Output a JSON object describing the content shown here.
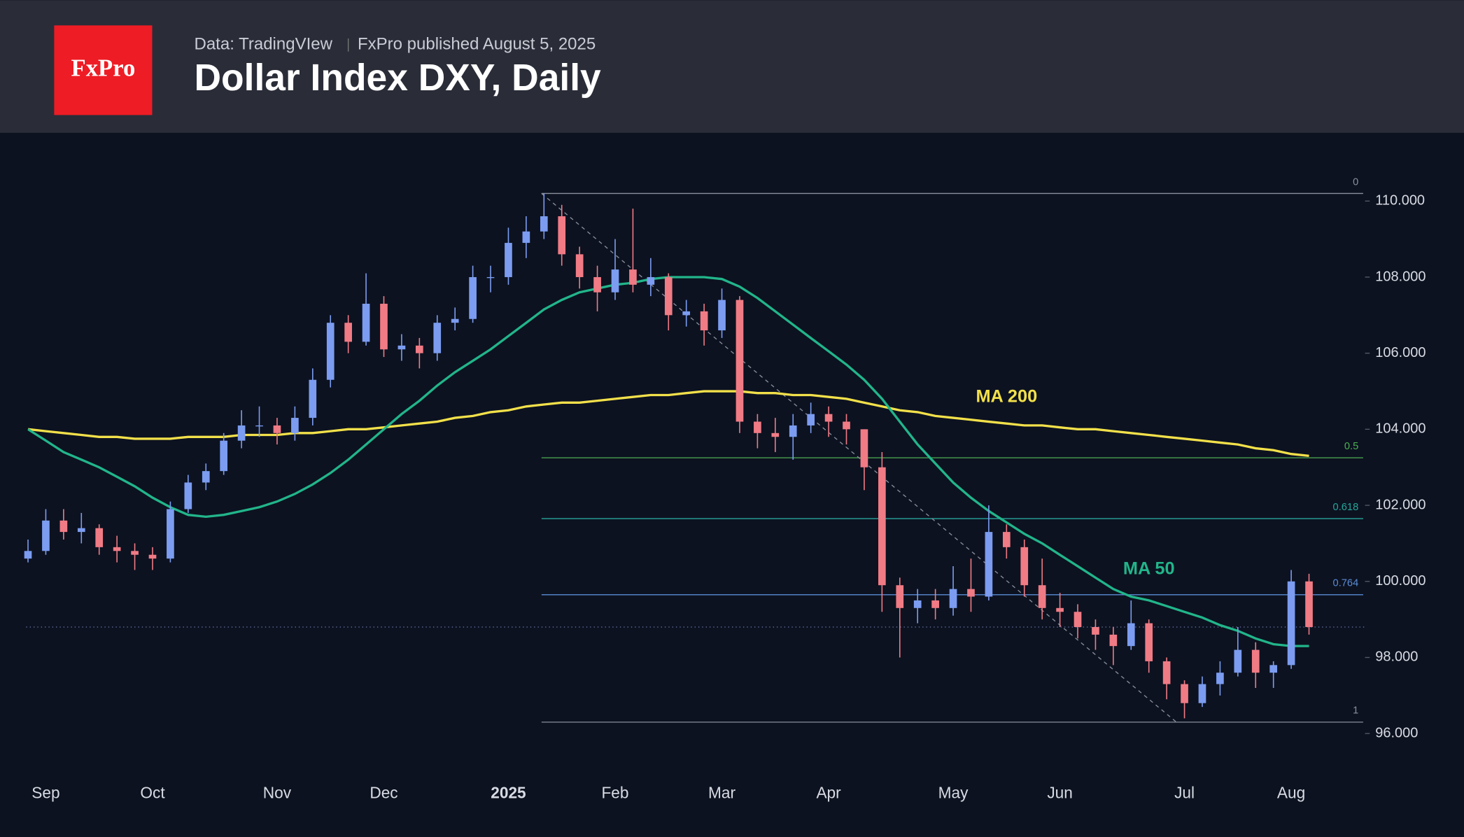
{
  "header": {
    "logo": "FxPro",
    "source": "Data: TradingVIew",
    "published": "FxPro published August 5, 2025",
    "title": "Dollar Index DXY, Daily"
  },
  "chart_data": {
    "type": "candlestick",
    "categories": [
      null,
      "Sep",
      null,
      null,
      null,
      null,
      null,
      "Oct",
      null,
      null,
      null,
      null,
      null,
      null,
      "Nov",
      null,
      null,
      null,
      null,
      null,
      "Dec",
      null,
      null,
      null,
      null,
      null,
      null,
      "2025",
      null,
      null,
      null,
      null,
      null,
      "Feb",
      null,
      null,
      null,
      null,
      null,
      "Mar",
      null,
      null,
      null,
      null,
      null,
      "Apr",
      null,
      null,
      null,
      null,
      null,
      null,
      "May",
      null,
      null,
      null,
      null,
      null,
      "Jun",
      null,
      null,
      null,
      null,
      null,
      null,
      "Jul",
      null,
      null,
      null,
      null,
      null,
      "Aug",
      null
    ],
    "ohlc": [
      [
        100.6,
        101.1,
        100.5,
        100.8
      ],
      [
        100.8,
        101.9,
        100.7,
        101.6
      ],
      [
        101.6,
        101.9,
        101.1,
        101.3
      ],
      [
        101.3,
        101.8,
        101.0,
        101.4
      ],
      [
        101.4,
        101.5,
        100.7,
        100.9
      ],
      [
        100.9,
        101.2,
        100.5,
        100.8
      ],
      [
        100.8,
        101.0,
        100.3,
        100.7
      ],
      [
        100.7,
        100.9,
        100.3,
        100.6
      ],
      [
        100.6,
        102.1,
        100.5,
        101.9
      ],
      [
        101.9,
        102.8,
        101.8,
        102.6
      ],
      [
        102.6,
        103.1,
        102.4,
        102.9
      ],
      [
        102.9,
        103.9,
        102.8,
        103.7
      ],
      [
        103.7,
        104.5,
        103.5,
        104.1
      ],
      [
        104.1,
        104.6,
        103.8,
        104.1
      ],
      [
        104.1,
        104.3,
        103.6,
        103.9
      ],
      [
        103.9,
        104.6,
        103.7,
        104.3
      ],
      [
        104.3,
        105.6,
        104.1,
        105.3
      ],
      [
        105.3,
        107.0,
        105.1,
        106.8
      ],
      [
        106.8,
        107.0,
        106.0,
        106.3
      ],
      [
        106.3,
        108.1,
        106.2,
        107.3
      ],
      [
        107.3,
        107.5,
        105.9,
        106.1
      ],
      [
        106.1,
        106.5,
        105.8,
        106.2
      ],
      [
        106.2,
        106.4,
        105.6,
        106.0
      ],
      [
        106.0,
        107.0,
        105.8,
        106.8
      ],
      [
        106.8,
        107.2,
        106.6,
        106.9
      ],
      [
        106.9,
        108.3,
        106.8,
        108.0
      ],
      [
        108.0,
        108.3,
        107.6,
        108.0
      ],
      [
        108.0,
        109.3,
        107.8,
        108.9
      ],
      [
        108.9,
        109.6,
        108.5,
        109.2
      ],
      [
        109.2,
        110.2,
        109.0,
        109.6
      ],
      [
        109.6,
        109.9,
        108.3,
        108.6
      ],
      [
        108.6,
        108.8,
        107.7,
        108.0
      ],
      [
        108.0,
        108.3,
        107.1,
        107.6
      ],
      [
        107.6,
        109.0,
        107.4,
        108.2
      ],
      [
        108.2,
        109.8,
        107.6,
        107.8
      ],
      [
        107.8,
        108.5,
        107.5,
        108.0
      ],
      [
        108.0,
        108.1,
        106.6,
        107.0
      ],
      [
        107.0,
        107.4,
        106.7,
        107.1
      ],
      [
        107.1,
        107.3,
        106.2,
        106.6
      ],
      [
        106.6,
        107.7,
        106.4,
        107.4
      ],
      [
        107.4,
        107.5,
        103.9,
        104.2
      ],
      [
        104.2,
        104.4,
        103.5,
        103.9
      ],
      [
        103.9,
        104.3,
        103.4,
        103.8
      ],
      [
        103.8,
        104.4,
        103.2,
        104.1
      ],
      [
        104.1,
        104.7,
        103.9,
        104.4
      ],
      [
        104.4,
        104.6,
        103.8,
        104.2
      ],
      [
        104.2,
        104.4,
        103.6,
        104.0
      ],
      [
        104.0,
        104.0,
        102.4,
        103.0
      ],
      [
        103.0,
        103.4,
        99.2,
        99.9
      ],
      [
        99.9,
        100.1,
        98.0,
        99.3
      ],
      [
        99.3,
        99.8,
        98.9,
        99.5
      ],
      [
        99.5,
        99.8,
        99.0,
        99.3
      ],
      [
        99.3,
        100.4,
        99.1,
        99.8
      ],
      [
        99.8,
        100.6,
        99.2,
        99.6
      ],
      [
        99.6,
        102.0,
        99.5,
        101.3
      ],
      [
        101.3,
        101.5,
        100.6,
        100.9
      ],
      [
        100.9,
        101.1,
        99.6,
        99.9
      ],
      [
        99.9,
        100.6,
        99.0,
        99.3
      ],
      [
        99.3,
        99.7,
        98.8,
        99.2
      ],
      [
        99.2,
        99.4,
        98.5,
        98.8
      ],
      [
        98.8,
        99.0,
        98.2,
        98.6
      ],
      [
        98.6,
        98.8,
        97.8,
        98.3
      ],
      [
        98.3,
        99.5,
        98.2,
        98.9
      ],
      [
        98.9,
        99.0,
        97.6,
        97.9
      ],
      [
        97.9,
        98.0,
        96.9,
        97.3
      ],
      [
        97.3,
        97.4,
        96.4,
        96.8
      ],
      [
        96.8,
        97.5,
        96.7,
        97.3
      ],
      [
        97.3,
        97.9,
        97.0,
        97.6
      ],
      [
        97.6,
        98.8,
        97.5,
        98.2
      ],
      [
        98.2,
        98.4,
        97.2,
        97.6
      ],
      [
        97.6,
        97.9,
        97.2,
        97.8
      ],
      [
        97.8,
        100.3,
        97.7,
        100.0
      ],
      [
        100.0,
        100.2,
        98.6,
        98.8
      ]
    ],
    "up_color": "#7b9cf0",
    "down_color": "#f07b85",
    "series": [
      {
        "name": "MA 200",
        "color": "#f2e04a",
        "values": [
          104.0,
          103.95,
          103.9,
          103.85,
          103.8,
          103.8,
          103.75,
          103.75,
          103.75,
          103.8,
          103.8,
          103.8,
          103.85,
          103.85,
          103.85,
          103.9,
          103.9,
          103.95,
          104.0,
          104.0,
          104.05,
          104.1,
          104.15,
          104.2,
          104.3,
          104.35,
          104.45,
          104.5,
          104.6,
          104.65,
          104.7,
          104.7,
          104.75,
          104.8,
          104.85,
          104.9,
          104.9,
          104.95,
          105.0,
          105.0,
          105.0,
          104.95,
          104.95,
          104.9,
          104.9,
          104.85,
          104.8,
          104.7,
          104.6,
          104.5,
          104.45,
          104.35,
          104.3,
          104.25,
          104.2,
          104.15,
          104.1,
          104.1,
          104.05,
          104.0,
          104.0,
          103.95,
          103.9,
          103.85,
          103.8,
          103.75,
          103.7,
          103.65,
          103.6,
          103.5,
          103.45,
          103.35,
          103.3
        ]
      },
      {
        "name": "MA 50",
        "color": "#22b58a",
        "values": [
          104.0,
          103.7,
          103.4,
          103.2,
          103.0,
          102.75,
          102.5,
          102.2,
          101.95,
          101.75,
          101.7,
          101.75,
          101.85,
          101.95,
          102.1,
          102.3,
          102.55,
          102.85,
          103.2,
          103.6,
          104.0,
          104.4,
          104.75,
          105.15,
          105.5,
          105.8,
          106.1,
          106.45,
          106.8,
          107.15,
          107.4,
          107.6,
          107.7,
          107.8,
          107.85,
          107.95,
          108.0,
          108.0,
          108.0,
          107.95,
          107.75,
          107.45,
          107.1,
          106.75,
          106.4,
          106.05,
          105.7,
          105.3,
          104.8,
          104.2,
          103.6,
          103.1,
          102.6,
          102.2,
          101.85,
          101.55,
          101.25,
          101.0,
          100.7,
          100.4,
          100.1,
          99.8,
          99.6,
          99.5,
          99.35,
          99.2,
          99.05,
          98.85,
          98.7,
          98.5,
          98.35,
          98.3,
          98.3
        ]
      }
    ],
    "fib_levels": [
      {
        "label": "0",
        "value": 110.2,
        "color": "#8a8f9c"
      },
      {
        "label": "0.5",
        "value": 103.25,
        "color": "#4caf50"
      },
      {
        "label": "0.618",
        "value": 101.65,
        "color": "#26a69a"
      },
      {
        "label": "0.764",
        "value": 99.65,
        "color": "#5b8bd6"
      },
      {
        "label": "1",
        "value": 96.3,
        "color": "#8a8f9c"
      }
    ],
    "ylim": [
      95.2,
      111.5
    ],
    "yticks": [
      {
        "value": 96,
        "label": "96.000"
      },
      {
        "value": 98,
        "label": "98.000"
      },
      {
        "value": 100,
        "label": "100.000"
      },
      {
        "value": 102,
        "label": "102.000"
      },
      {
        "value": 104,
        "label": "104.000"
      },
      {
        "value": 106,
        "label": "106.000"
      },
      {
        "value": 108,
        "label": "108.000"
      },
      {
        "value": 110,
        "label": "110.000"
      }
    ]
  }
}
